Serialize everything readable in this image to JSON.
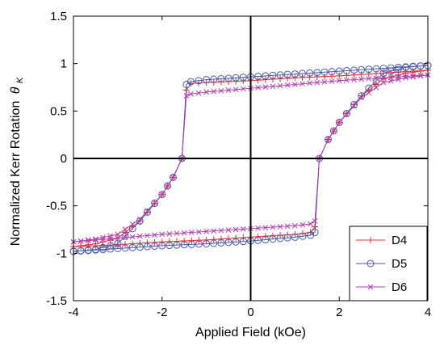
{
  "chart_data": {
    "type": "line",
    "xlabel": "Applied Field (kOe)",
    "ylabel": "Normalized Kerr Rotation",
    "ylabel_symbol": "θ",
    "ylabel_subscript": "K",
    "xlim": [
      -4,
      4
    ],
    "ylim": [
      -1.5,
      1.5
    ],
    "xticks": [
      -4,
      -2,
      0,
      2,
      4
    ],
    "xtick_labels": [
      "-4",
      "-2",
      "0",
      "2",
      "4"
    ],
    "yticks": [
      -1.5,
      -1,
      -0.5,
      0,
      0.5,
      1,
      1.5
    ],
    "ytick_labels": [
      "-1.5",
      "-1",
      "-0.5",
      "0",
      "0.5",
      "1",
      "1.5"
    ],
    "grid": false,
    "legend_position": "bottom-right",
    "series": [
      {
        "name": "D4",
        "color": "#e8303a",
        "marker": "plus",
        "descending": {
          "x": [
            4.0,
            3.0,
            2.0,
            1.0,
            0.0,
            -1.0,
            -1.35,
            -1.45,
            -1.55,
            -1.75,
            -2.0,
            -2.5,
            -3.0,
            -3.5,
            -4.0
          ],
          "y": [
            0.93,
            0.9,
            0.87,
            0.85,
            0.82,
            0.8,
            0.79,
            0.72,
            0.0,
            -0.2,
            -0.38,
            -0.66,
            -0.84,
            -0.9,
            -0.93
          ]
        },
        "ascending": {
          "x": [
            -4.0,
            -3.0,
            -2.0,
            -1.0,
            0.0,
            1.0,
            1.35,
            1.45,
            1.55,
            1.75,
            2.0,
            2.5,
            3.0,
            3.5,
            4.0
          ],
          "y": [
            -0.93,
            -0.91,
            -0.88,
            -0.86,
            -0.83,
            -0.8,
            -0.78,
            -0.72,
            0.0,
            0.2,
            0.38,
            0.66,
            0.84,
            0.9,
            0.93
          ]
        }
      },
      {
        "name": "D5",
        "color": "#4a5aa8",
        "marker": "circle",
        "descending": {
          "x": [
            4.0,
            3.0,
            2.0,
            1.0,
            0.0,
            -1.0,
            -1.35,
            -1.45,
            -1.55,
            -1.75,
            -2.0,
            -2.5,
            -3.0,
            -3.5,
            -4.0
          ],
          "y": [
            0.98,
            0.95,
            0.92,
            0.89,
            0.86,
            0.83,
            0.81,
            0.78,
            0.0,
            -0.2,
            -0.38,
            -0.66,
            -0.9,
            -0.96,
            -0.98
          ]
        },
        "ascending": {
          "x": [
            -4.0,
            -3.0,
            -2.0,
            -1.0,
            0.0,
            1.0,
            1.35,
            1.45,
            1.55,
            1.75,
            2.0,
            2.5,
            3.0,
            3.5,
            4.0
          ],
          "y": [
            -0.98,
            -0.95,
            -0.92,
            -0.9,
            -0.87,
            -0.83,
            -0.81,
            -0.78,
            0.0,
            0.2,
            0.38,
            0.66,
            0.9,
            0.96,
            0.98
          ]
        }
      },
      {
        "name": "D6",
        "color": "#b040b0",
        "marker": "x",
        "descending": {
          "x": [
            4.0,
            3.0,
            2.0,
            1.0,
            0.0,
            -1.0,
            -1.35,
            -1.45,
            -1.55,
            -1.75,
            -2.0,
            -2.5,
            -3.0,
            -3.5,
            -4.0
          ],
          "y": [
            0.88,
            0.85,
            0.82,
            0.78,
            0.74,
            0.7,
            0.68,
            0.66,
            0.0,
            -0.2,
            -0.38,
            -0.64,
            -0.8,
            -0.85,
            -0.88
          ]
        },
        "ascending": {
          "x": [
            -4.0,
            -3.0,
            -2.0,
            -1.0,
            0.0,
            1.0,
            1.35,
            1.45,
            1.55,
            1.75,
            2.0,
            2.5,
            3.0,
            3.5,
            4.0
          ],
          "y": [
            -0.88,
            -0.84,
            -0.8,
            -0.77,
            -0.74,
            -0.71,
            -0.69,
            -0.66,
            0.0,
            0.2,
            0.38,
            0.64,
            0.8,
            0.85,
            0.88
          ]
        }
      }
    ]
  }
}
